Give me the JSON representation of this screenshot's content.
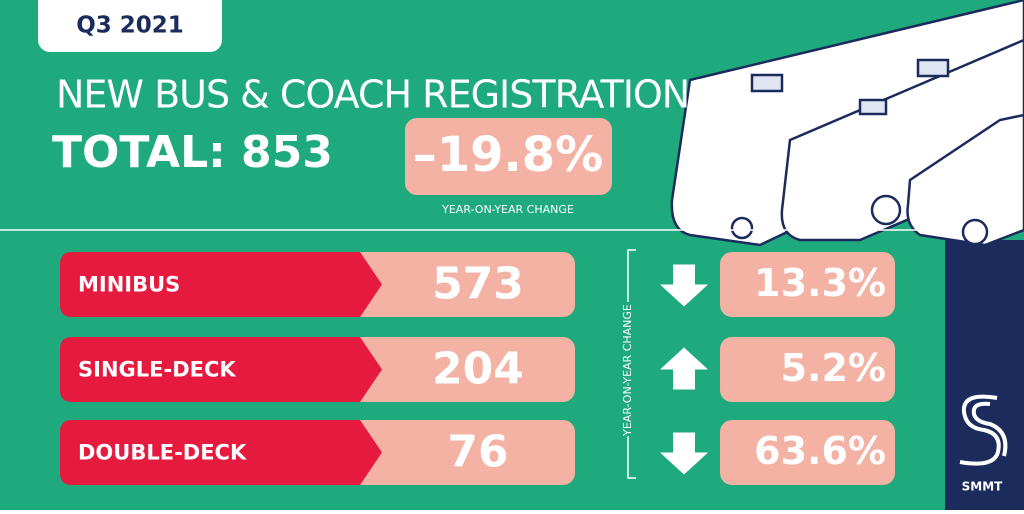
{
  "header": {
    "badge": "Q3 2021",
    "title": "NEW BUS & COACH REGISTRATIONS",
    "total": "TOTAL: 853",
    "change": "–19.8%",
    "change_caption": "YEAR-ON-YEAR CHANGE"
  },
  "side_label": "YEAR-ON-YEAR CHANGE",
  "rows": [
    {
      "name": "MINIBUS",
      "count": "573",
      "direction": "down",
      "change": "13.3%"
    },
    {
      "name": "SINGLE-DECK",
      "count": "204",
      "direction": "up",
      "change": "5.2%"
    },
    {
      "name": "DOUBLE-DECK",
      "count": "76",
      "direction": "down",
      "change": "63.6%"
    }
  ],
  "logo": "SMMT"
}
